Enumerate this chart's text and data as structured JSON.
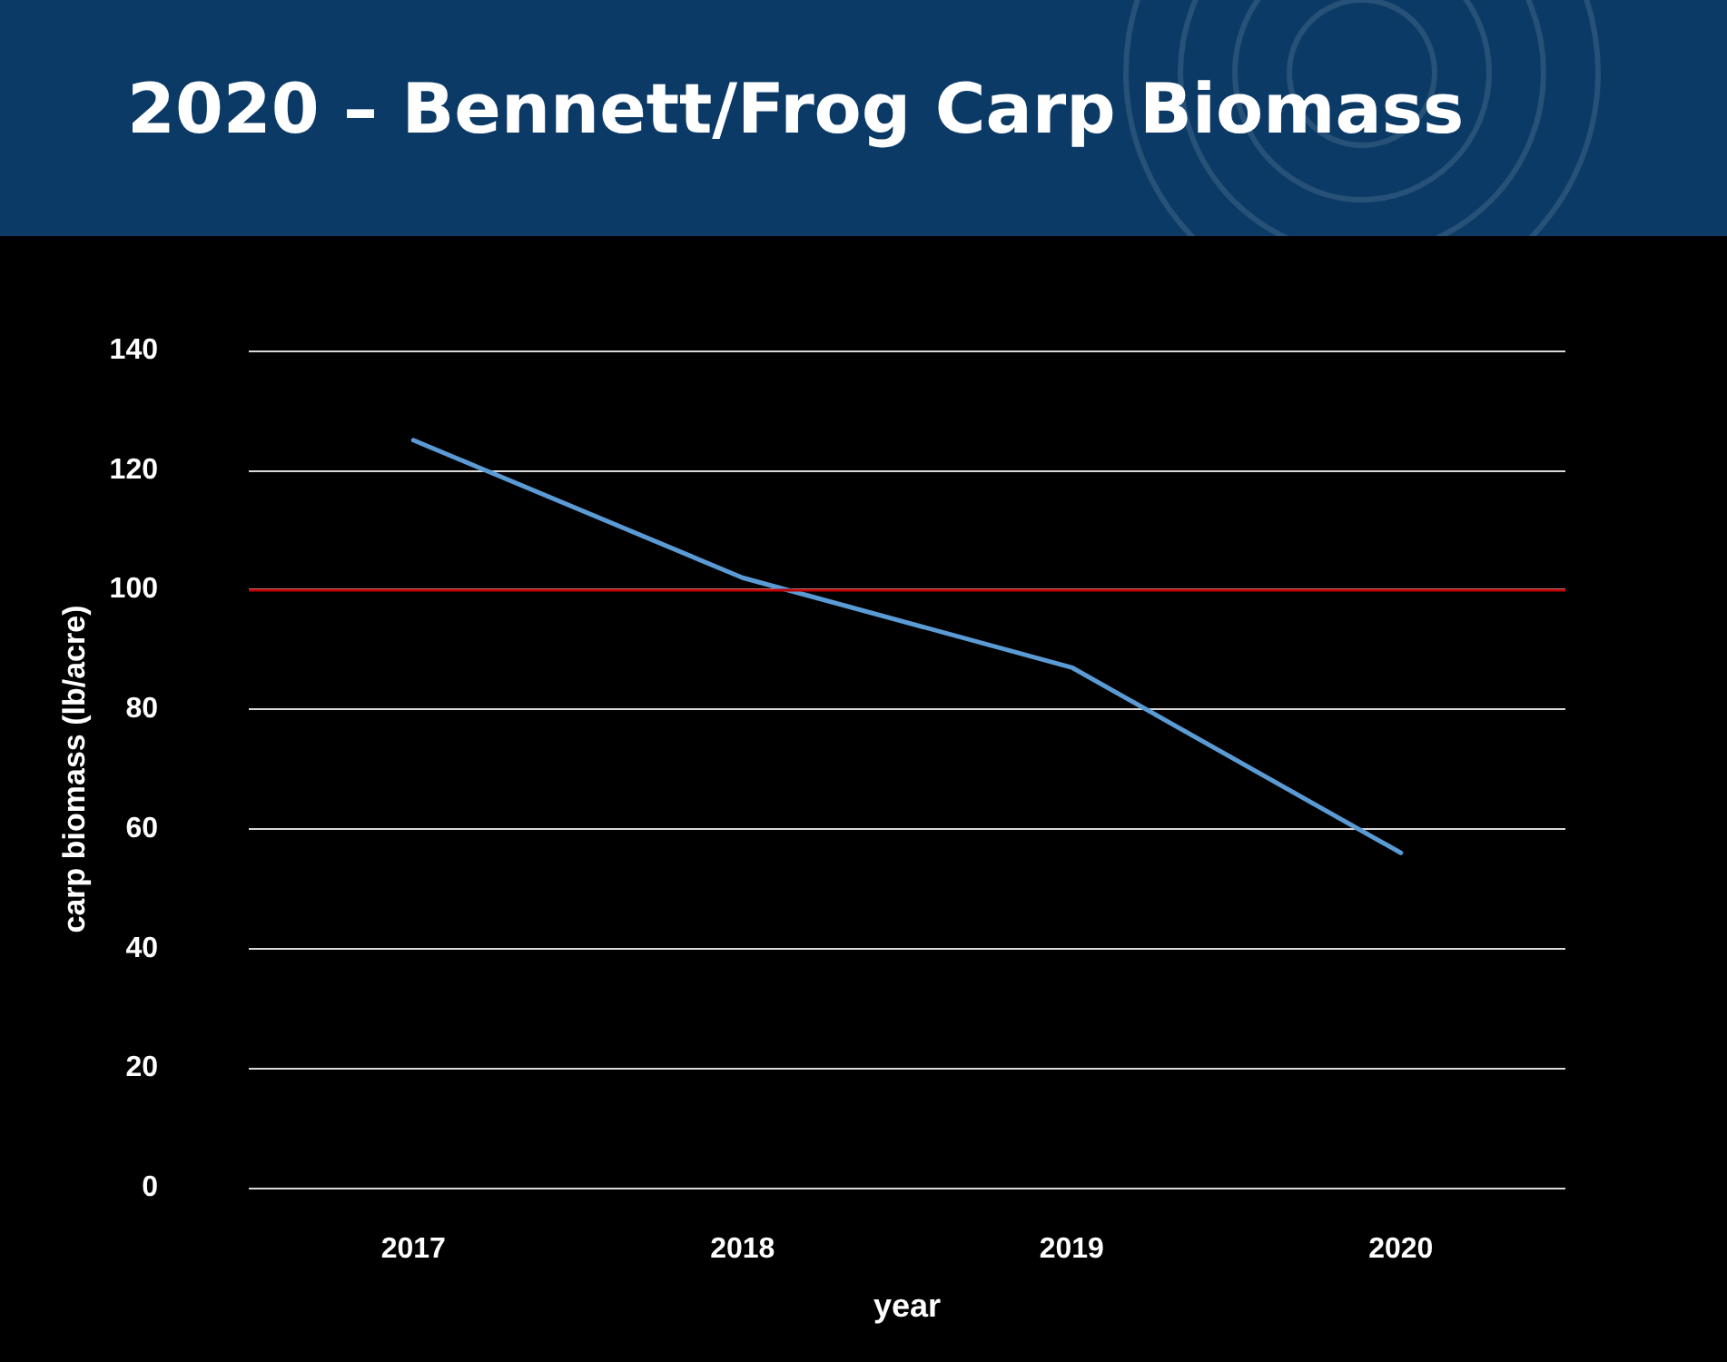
{
  "chart_data": {
    "type": "line",
    "title": "2020 – Bennett/Frog Carp Biomass",
    "xlabel": "year",
    "ylabel": "carp biomass (lb/acre)",
    "categories": [
      "2017",
      "2018",
      "2019",
      "2020"
    ],
    "series": [
      {
        "color": "#5b9bd5",
        "values": [
          125,
          102,
          87,
          56
        ]
      }
    ],
    "ylim": [
      0,
      140
    ],
    "yticks": [
      0,
      20,
      40,
      60,
      80,
      100,
      120,
      140
    ],
    "grid": "y",
    "marker": "none",
    "line_style": "solid",
    "ref_lines": [
      {
        "axis": "y",
        "value": 100,
        "color": "#c00000"
      }
    ]
  }
}
